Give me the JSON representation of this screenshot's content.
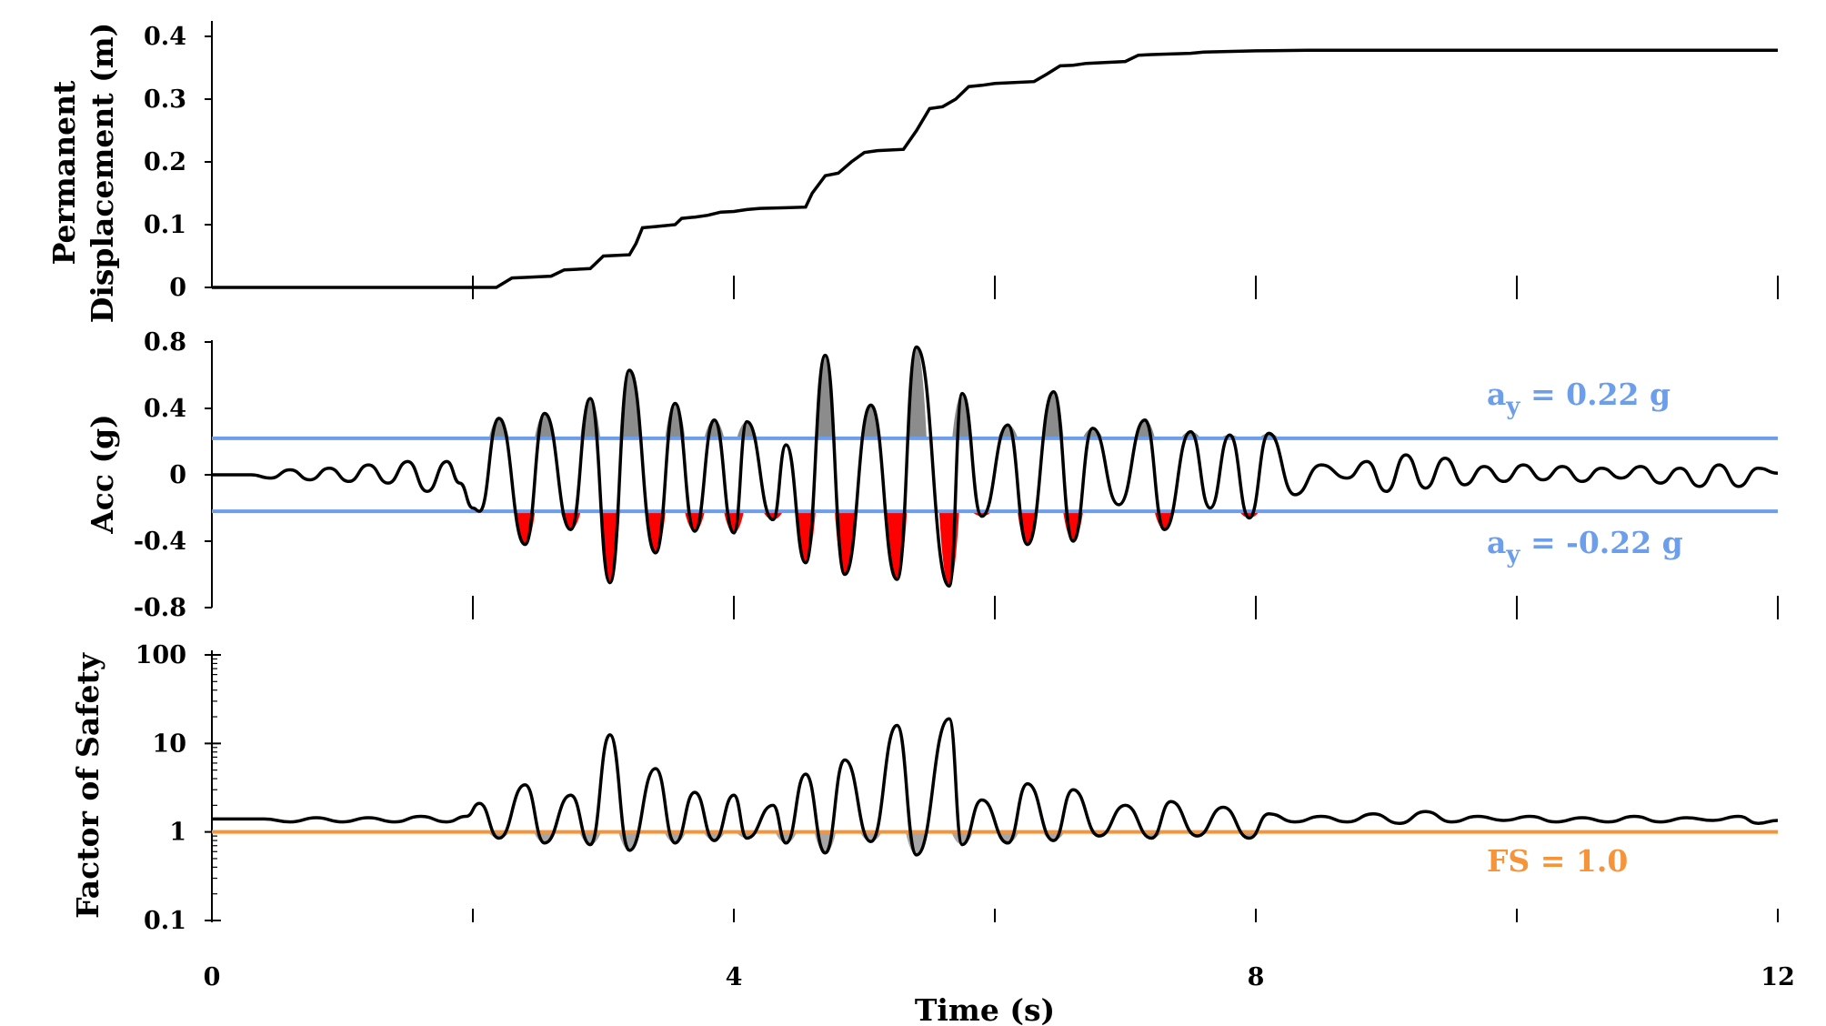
{
  "chart_data": [
    {
      "type": "line",
      "panel": "top",
      "ylabel": [
        "Permanent",
        "Displacement (m)"
      ],
      "xlabel": "",
      "ylim": [
        0,
        0.4
      ],
      "yticks": [
        "0",
        "0.1",
        "0.2",
        "0.3",
        "0.4"
      ],
      "yticks_values": [
        0,
        0.1,
        0.2,
        0.3,
        0.4
      ],
      "xlim": [
        0,
        12
      ],
      "xticks_values": [
        0,
        2,
        4,
        6,
        8,
        10,
        12
      ],
      "line_color": "#000000",
      "series": [
        {
          "x": [
            0,
            2.18,
            2.3,
            2.4,
            2.6,
            2.7,
            2.9,
            3.0,
            3.2,
            3.25,
            3.3,
            3.4,
            3.55,
            3.6,
            3.7,
            3.8,
            3.9,
            4.0,
            4.1,
            4.2,
            4.4,
            4.55,
            4.6,
            4.7,
            4.8,
            4.9,
            5.0,
            5.1,
            5.3,
            5.4,
            5.5,
            5.6,
            5.7,
            5.8,
            5.9,
            6.0,
            6.3,
            6.4,
            6.5,
            6.6,
            6.7,
            7.0,
            7.1,
            7.2,
            7.5,
            7.6,
            8.0,
            8.4,
            12.0
          ],
          "y": [
            0,
            0,
            0.015,
            0.016,
            0.018,
            0.028,
            0.03,
            0.05,
            0.052,
            0.07,
            0.095,
            0.097,
            0.1,
            0.11,
            0.112,
            0.115,
            0.12,
            0.121,
            0.124,
            0.126,
            0.127,
            0.128,
            0.15,
            0.178,
            0.182,
            0.2,
            0.215,
            0.218,
            0.22,
            0.25,
            0.285,
            0.288,
            0.3,
            0.32,
            0.322,
            0.325,
            0.328,
            0.34,
            0.353,
            0.354,
            0.357,
            0.36,
            0.37,
            0.371,
            0.373,
            0.375,
            0.377,
            0.378,
            0.378
          ]
        }
      ]
    },
    {
      "type": "line",
      "panel": "middle",
      "ylabel": "Acc (g)",
      "xlabel": "",
      "ylim": [
        -0.8,
        0.8
      ],
      "yticks": [
        "-0.8",
        "-0.4",
        "0",
        "0.4",
        "0.8"
      ],
      "yticks_values": [
        -0.8,
        -0.4,
        0,
        0.4,
        0.8
      ],
      "xlim": [
        0,
        12
      ],
      "xticks_values": [
        0,
        2,
        4,
        6,
        8,
        10,
        12
      ],
      "line_color": "#000000",
      "threshold_upper": 0.22,
      "threshold_lower": -0.22,
      "threshold_color": "#6d9eeb",
      "fill_above_color": "#8c8c8c",
      "fill_below_color": "#ff0000",
      "annotations": [
        "a",
        "y",
        " = 0.22 g",
        " = -0.22 g"
      ],
      "series": [
        {
          "x": [
            0,
            0.3,
            0.45,
            0.6,
            0.75,
            0.9,
            1.05,
            1.2,
            1.35,
            1.5,
            1.65,
            1.8,
            1.9,
            2.0,
            2.05,
            2.2,
            2.4,
            2.55,
            2.75,
            2.9,
            3.05,
            3.2,
            3.4,
            3.55,
            3.7,
            3.85,
            4.0,
            4.1,
            4.3,
            4.4,
            4.55,
            4.7,
            4.85,
            5.05,
            5.25,
            5.4,
            5.65,
            5.75,
            5.9,
            6.1,
            6.25,
            6.45,
            6.6,
            6.75,
            6.95,
            7.15,
            7.3,
            7.5,
            7.65,
            7.8,
            7.95,
            8.1,
            8.3,
            8.5,
            8.7,
            8.85,
            9.0,
            9.15,
            9.3,
            9.45,
            9.6,
            9.75,
            9.9,
            10.05,
            10.2,
            10.35,
            10.5,
            10.65,
            10.8,
            10.95,
            11.1,
            11.25,
            11.4,
            11.55,
            11.7,
            11.85,
            12.0
          ],
          "y": [
            0,
            0,
            -0.02,
            0.03,
            -0.03,
            0.04,
            -0.04,
            0.06,
            -0.05,
            0.08,
            -0.1,
            0.08,
            -0.05,
            -0.2,
            -0.22,
            0.34,
            -0.42,
            0.37,
            -0.33,
            0.46,
            -0.65,
            0.63,
            -0.47,
            0.43,
            -0.34,
            0.33,
            -0.35,
            0.32,
            -0.27,
            0.18,
            -0.53,
            0.72,
            -0.6,
            0.42,
            -0.63,
            0.77,
            -0.67,
            0.49,
            -0.25,
            0.3,
            -0.42,
            0.5,
            -0.4,
            0.28,
            -0.18,
            0.33,
            -0.33,
            0.26,
            -0.2,
            0.24,
            -0.26,
            0.25,
            -0.12,
            0.06,
            -0.02,
            0.08,
            -0.1,
            0.12,
            -0.08,
            0.1,
            -0.06,
            0.05,
            -0.04,
            0.06,
            -0.03,
            0.05,
            -0.04,
            0.04,
            -0.02,
            0.05,
            -0.05,
            0.04,
            -0.07,
            0.06,
            -0.07,
            0.04,
            0.01
          ]
        }
      ]
    },
    {
      "type": "line",
      "panel": "bottom",
      "ylabel": "Factor of Safety",
      "xlabel": "Time (s)",
      "yscale": "log",
      "ylim": [
        0.1,
        100
      ],
      "yticks": [
        "0.1",
        "1",
        "10",
        "100"
      ],
      "yticks_values": [
        0.1,
        1,
        10,
        100
      ],
      "xlim": [
        0,
        12
      ],
      "xticks": [
        "0",
        "4",
        "8",
        "12"
      ],
      "xticks_values": [
        0,
        4,
        8,
        12
      ],
      "xminor_values": [
        2,
        6,
        10
      ],
      "line_color": "#000000",
      "threshold": 1.0,
      "threshold_color": "#f6943a",
      "fill_below_color": "#a6a6a6",
      "annotation": "FS = 1.0",
      "series": [
        {
          "x": [
            0,
            0.4,
            0.6,
            0.8,
            1.0,
            1.2,
            1.4,
            1.6,
            1.8,
            1.95,
            2.05,
            2.2,
            2.4,
            2.55,
            2.75,
            2.9,
            3.05,
            3.2,
            3.4,
            3.55,
            3.7,
            3.85,
            4.0,
            4.1,
            4.3,
            4.4,
            4.55,
            4.7,
            4.85,
            5.05,
            5.25,
            5.4,
            5.65,
            5.75,
            5.9,
            6.1,
            6.25,
            6.45,
            6.6,
            6.8,
            7.0,
            7.2,
            7.35,
            7.55,
            7.75,
            7.95,
            8.1,
            8.3,
            8.5,
            8.7,
            8.9,
            9.1,
            9.3,
            9.5,
            9.7,
            9.9,
            10.1,
            10.3,
            10.5,
            10.7,
            10.9,
            11.1,
            11.3,
            11.5,
            11.7,
            11.85,
            12.0
          ],
          "y": [
            1.4,
            1.4,
            1.3,
            1.45,
            1.3,
            1.45,
            1.3,
            1.5,
            1.3,
            1.5,
            2.1,
            0.85,
            3.4,
            0.75,
            2.6,
            0.72,
            12.5,
            0.62,
            5.2,
            0.75,
            2.8,
            0.8,
            2.6,
            0.85,
            2.0,
            0.75,
            4.5,
            0.58,
            6.5,
            0.78,
            16.0,
            0.55,
            19.0,
            0.72,
            2.3,
            0.75,
            3.5,
            0.8,
            3.0,
            0.9,
            2.0,
            0.85,
            2.2,
            0.9,
            1.9,
            0.85,
            1.6,
            1.3,
            1.5,
            1.3,
            1.6,
            1.25,
            1.7,
            1.3,
            1.5,
            1.35,
            1.5,
            1.3,
            1.45,
            1.3,
            1.5,
            1.3,
            1.45,
            1.35,
            1.5,
            1.25,
            1.35
          ]
        }
      ]
    }
  ]
}
